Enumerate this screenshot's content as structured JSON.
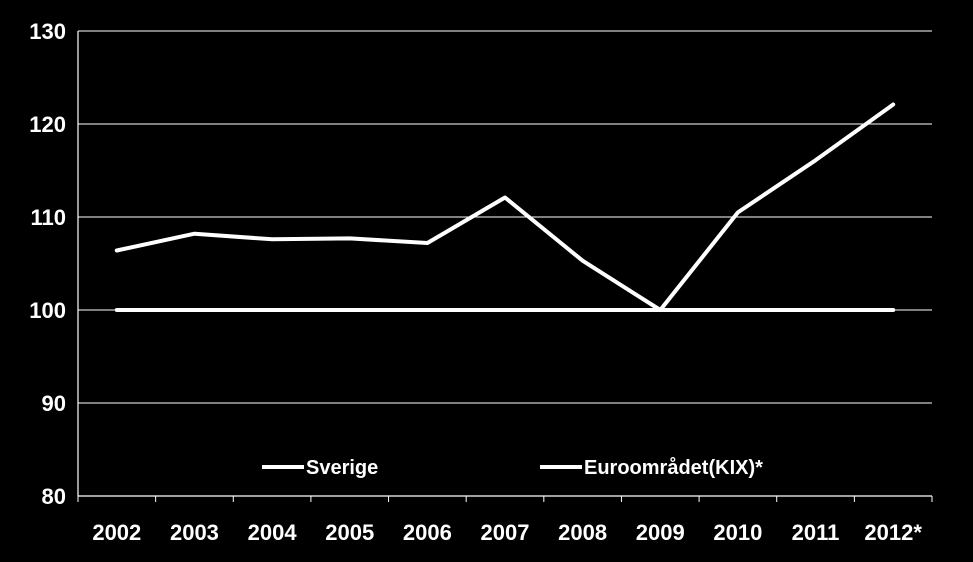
{
  "chart_data": {
    "type": "line",
    "title": "",
    "xlabel": "",
    "ylabel": "",
    "categories": [
      "2002",
      "2003",
      "2004",
      "2005",
      "2006",
      "2007",
      "2008",
      "2009",
      "2010",
      "2011",
      "2012*"
    ],
    "ylim": [
      80,
      130
    ],
    "yticks": [
      "80",
      "90",
      "100",
      "110",
      "120",
      "130"
    ],
    "grid": true,
    "legend_position": "bottom",
    "series": [
      {
        "name": "Sverige",
        "color": "#ffffff",
        "values": [
          106.4,
          108.2,
          107.6,
          107.7,
          107.2,
          112.1,
          105.3,
          100.0,
          110.5,
          116.1,
          122.1
        ]
      },
      {
        "name": "Euroområdet(KIX)*",
        "color": "#ffffff",
        "values": [
          100,
          100,
          100,
          100,
          100,
          100,
          100,
          100,
          100,
          100,
          100
        ]
      }
    ]
  },
  "colors": {
    "background": "#000000",
    "foreground": "#ffffff"
  }
}
